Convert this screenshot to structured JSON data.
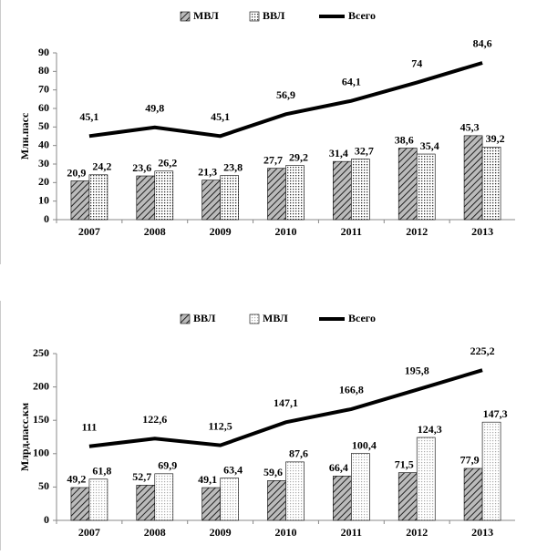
{
  "chart_data": [
    {
      "type": "bar",
      "ylabel": "Млн.пасс",
      "categories": [
        "2007",
        "2008",
        "2009",
        "2010",
        "2011",
        "2012",
        "2013"
      ],
      "ylim": [
        0,
        90
      ],
      "yticks": [
        0,
        10,
        20,
        30,
        40,
        50,
        60,
        70,
        80,
        90
      ],
      "series": [
        {
          "name": "МВЛ",
          "color": "#000000",
          "pattern": "hatch",
          "values": [
            20.9,
            23.6,
            21.3,
            27.7,
            31.4,
            38.6,
            45.3
          ],
          "value_labels": [
            "20,9",
            "23,6",
            "21,3",
            "27,7",
            "31,4",
            "38,6",
            "45,3"
          ]
        },
        {
          "name": "ВВЛ",
          "color": "#000000",
          "pattern": "dots",
          "values": [
            24.2,
            26.2,
            23.8,
            29.2,
            32.7,
            35.4,
            39.2
          ],
          "value_labels": [
            "24,2",
            "26,2",
            "23,8",
            "29,2",
            "32,7",
            "35,4",
            "39,2"
          ]
        },
        {
          "name": "Всего",
          "color": "#000000",
          "type": "line",
          "values": [
            45.1,
            49.8,
            45.1,
            56.9,
            64.1,
            74,
            84.6
          ],
          "value_labels": [
            "45,1",
            "49,8",
            "45,1",
            "56,9",
            "64,1",
            "74",
            "84,6"
          ]
        }
      ]
    },
    {
      "type": "bar",
      "ylabel": "Млрд.пасс.км",
      "categories": [
        "2007",
        "2008",
        "2009",
        "2010",
        "2011",
        "2012",
        "2013"
      ],
      "ylim": [
        0,
        250
      ],
      "yticks": [
        0,
        50,
        100,
        150,
        200,
        250
      ],
      "series": [
        {
          "name": "ВВЛ",
          "color": "#000000",
          "pattern": "hatch",
          "values": [
            49.2,
            52.7,
            49.1,
            59.6,
            66.4,
            71.5,
            77.9
          ],
          "value_labels": [
            "49,2",
            "52,7",
            "49,1",
            "59,6",
            "66,4",
            "71,5",
            "77,9"
          ]
        },
        {
          "name": "МВЛ",
          "color": "#000000",
          "pattern": "light-dots",
          "values": [
            61.8,
            69.9,
            63.4,
            87.6,
            100.4,
            124.3,
            147.3
          ],
          "value_labels": [
            "61,8",
            "69,9",
            "63,4",
            "87,6",
            "100,4",
            "124,3",
            "147,3"
          ]
        },
        {
          "name": "Всего",
          "color": "#000000",
          "type": "line",
          "values": [
            111,
            122.6,
            112.5,
            147.1,
            166.8,
            195.8,
            225.2
          ],
          "value_labels": [
            "111",
            "122,6",
            "112,5",
            "147,1",
            "166,8",
            "195,8",
            "225,2"
          ]
        }
      ]
    }
  ]
}
